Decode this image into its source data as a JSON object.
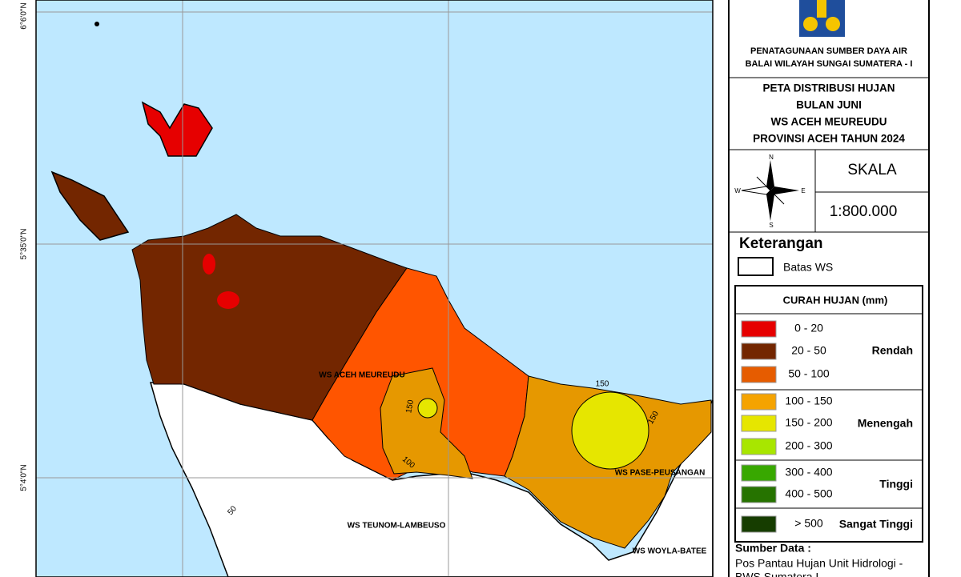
{
  "map": {
    "lat_labels": [
      "6°6'0\"N",
      "5°35'0\"N",
      "5°4'0\"N"
    ],
    "region_labels": [
      "WS ACEH MEUREUDU",
      "WS PASE-PEUSANGAN",
      "WS TEUNOM-LAMBEUSO",
      "WS WOYLA-BATEE"
    ],
    "contour_labels": [
      "150",
      "150",
      "150",
      "100",
      "50"
    ]
  },
  "header": {
    "org": [
      "PENATAGUNAAN SUMBER DAYA AIR",
      "BALAI WILAYAH SUNGAI SUMATERA - I"
    ],
    "title": [
      "PETA DISTRIBUSI HUJAN",
      "BULAN JUNI",
      "WS ACEH MEUREUDU",
      "PROVINSI ACEH TAHUN 2024"
    ]
  },
  "compass": {
    "n": "N",
    "e": "E",
    "s": "S",
    "w": "W"
  },
  "scale": {
    "label": "SKALA",
    "value": "1:800.000"
  },
  "legend": {
    "title": "Keterangan",
    "boundary": "Batas WS",
    "rain_title": "CURAH HUJAN (mm)",
    "items": [
      {
        "range": "0  -  20",
        "color": "#e60000"
      },
      {
        "range": "20  -  50",
        "color": "#732600"
      },
      {
        "range": "50  -  100",
        "color": "#e65c00"
      },
      {
        "range": "100  -  150",
        "color": "#f5a300"
      },
      {
        "range": "150  -  200",
        "color": "#e6e600"
      },
      {
        "range": "200  -  300",
        "color": "#a8e600"
      },
      {
        "range": "300  -  400",
        "color": "#38a800"
      },
      {
        "range": "400  -  500",
        "color": "#267300"
      },
      {
        "range": ">  500",
        "color": "#163d00"
      }
    ],
    "groups": [
      "Rendah",
      "Menengah",
      "Tinggi",
      "Sangat Tinggi"
    ]
  },
  "source": {
    "title": "Sumber Data :",
    "lines": [
      "Pos Pantau Hujan Unit Hidrologi -",
      "BWS Sumatera I"
    ]
  }
}
